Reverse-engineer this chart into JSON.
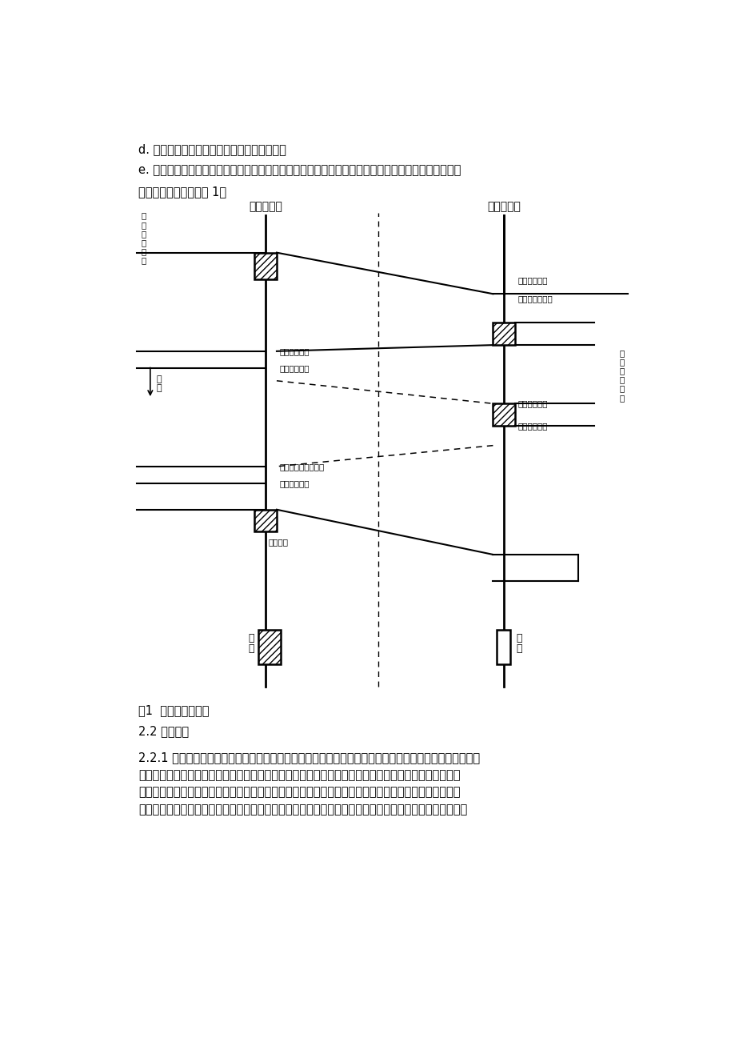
{
  "bg_color": "#ffffff",
  "page_width": 9.2,
  "page_height": 13.02,
  "text_color": "#000000",
  "para_d": "d. 来话端识别前向信号停发，停发后向信号；",
  "para_e": "e. 去话端识别后向信号停发，根据收到的后向信号要求，发送下一位前向信号，开始第二个互控过程。",
  "para_f": "以上互控过程示意于图 1。",
  "fig_caption": "图1  互控过程示意图",
  "section_22": "2.2 发码方式",
  "para_221_1": "2.2.1 在长话自动交换网中，不允许发端市话局记发器直接向转接长话局或终端长话局记发器发送记发器信",
  "para_221_2": "号。必须由发端长话局转发至转接长话局或终端长话局。同样，在一般情况下，也不允许转接长话局或发",
  "para_221_3": "端长话局直接向终端市话局记发器发送记发器信号，必须由终端长话局记发器转发至终端市话局。但是，",
  "para_221_4": "对装设在终端长话局内的市话局，允许转接长话局或发端长话局直接向终端市话局记发器发送记发器信号。"
}
